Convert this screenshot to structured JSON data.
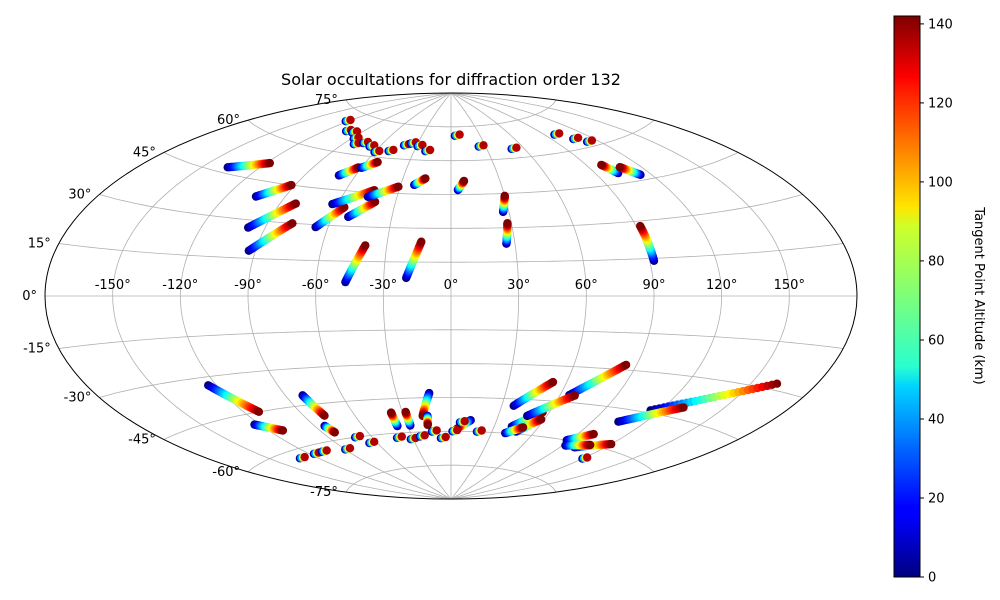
{
  "chart_data": {
    "type": "scatter",
    "projection": "Aitoff",
    "title": "Solar occultations for diffraction order 132",
    "grid": true,
    "lon_ticks": [
      {
        "value": -150,
        "label": "-150°"
      },
      {
        "value": -120,
        "label": "-120°"
      },
      {
        "value": -90,
        "label": "-90°"
      },
      {
        "value": -60,
        "label": "-60°"
      },
      {
        "value": -30,
        "label": "-30°"
      },
      {
        "value": 0,
        "label": "0°"
      },
      {
        "value": 30,
        "label": "30°"
      },
      {
        "value": 60,
        "label": "60°"
      },
      {
        "value": 90,
        "label": "90°"
      },
      {
        "value": 120,
        "label": "120°"
      },
      {
        "value": 150,
        "label": "150°"
      }
    ],
    "lat_ticks": [
      {
        "value": 75,
        "label": "75°"
      },
      {
        "value": 60,
        "label": "60°"
      },
      {
        "value": 45,
        "label": "45°"
      },
      {
        "value": 30,
        "label": "30°"
      },
      {
        "value": 15,
        "label": "15°"
      },
      {
        "value": 0,
        "label": "0°"
      },
      {
        "value": -15,
        "label": "-15°"
      },
      {
        "value": -30,
        "label": "-30°"
      },
      {
        "value": -45,
        "label": "-45°"
      },
      {
        "value": -60,
        "label": "-60°"
      },
      {
        "value": -75,
        "label": "-75°"
      }
    ],
    "colorbar": {
      "label": "Tangent Point Altitude (km)",
      "colormap": "jet",
      "range": [
        0,
        142
      ],
      "ticks": [
        {
          "value": 0,
          "label": "0"
        },
        {
          "value": 20,
          "label": "20"
        },
        {
          "value": 40,
          "label": "40"
        },
        {
          "value": 60,
          "label": "60"
        },
        {
          "value": 80,
          "label": "80"
        },
        {
          "value": 100,
          "label": "100"
        },
        {
          "value": 120,
          "label": "120"
        },
        {
          "value": 140,
          "label": "140"
        }
      ]
    },
    "tracks": [
      {
        "lon0": -137,
        "lat0": 47,
        "lon1": -118,
        "lat1": 51.5
      },
      {
        "lon0": -105,
        "lat0": 39,
        "lon1": -92,
        "lat1": 45
      },
      {
        "lon0": -98,
        "lat0": 27,
        "lon1": -82,
        "lat1": 38
      },
      {
        "lon0": -93,
        "lat0": 18,
        "lon1": -78,
        "lat1": 30
      },
      {
        "lon0": -66,
        "lat0": 29,
        "lon1": -56,
        "lat1": 38
      },
      {
        "lon0": -63,
        "lat0": 39,
        "lon1": -44,
        "lat1": 46
      },
      {
        "lon0": -52,
        "lat0": 34,
        "lon1": -41,
        "lat1": 41
      },
      {
        "lon0": -46,
        "lat0": 43,
        "lon1": -31,
        "lat1": 48
      },
      {
        "lon0": -47,
        "lat0": 6,
        "lon1": -40,
        "lat1": 22
      },
      {
        "lon0": -20,
        "lat0": 8,
        "lon1": -14,
        "lat1": 24
      },
      {
        "lon0": -22,
        "lat0": 49,
        "lon1": -16,
        "lat1": 52
      },
      {
        "lon0": 4,
        "lat0": 47,
        "lon1": 8,
        "lat1": 51
      },
      {
        "lon0": 26,
        "lat0": 23,
        "lon1": 28,
        "lat1": 32
      },
      {
        "lon0": 27,
        "lat0": 37,
        "lon1": 30,
        "lat1": 44
      },
      {
        "lon0": 92,
        "lat0": 14,
        "lon1": 92,
        "lat1": 28
      },
      {
        "lon0": 103,
        "lat0": 49,
        "lon1": 99,
        "lat1": 53
      },
      {
        "lon0": 114,
        "lat0": 47,
        "lon1": 108,
        "lat1": 51
      },
      {
        "lon0": -70,
        "lat0": 51,
        "lon1": -62,
        "lat1": 55
      },
      {
        "lon0": -60,
        "lat0": 55,
        "lon1": -52,
        "lat1": 58
      },
      {
        "lon0": -124,
        "lat0": -33,
        "lon1": -112,
        "lat1": -45
      },
      {
        "lon0": -123,
        "lat0": -49,
        "lon1": -112,
        "lat1": -53
      },
      {
        "lon0": -81,
        "lat0": -41,
        "lon1": -78,
        "lat1": -50
      },
      {
        "lon0": -84,
        "lat0": -54,
        "lon1": -82,
        "lat1": -57
      },
      {
        "lon0": -37,
        "lat0": -57,
        "lon1": -37,
        "lat1": -51
      },
      {
        "lon0": -28,
        "lat0": -57,
        "lon1": -28,
        "lat1": -51
      },
      {
        "lon0": -12,
        "lat0": -43,
        "lon1": -18,
        "lat1": -53
      },
      {
        "lon0": -15,
        "lat0": -53,
        "lon1": -16,
        "lat1": -57
      },
      {
        "lon0": 13,
        "lat0": -55,
        "lon1": 4,
        "lat1": -59
      },
      {
        "lon0": 37,
        "lat0": -48,
        "lon1": 53,
        "lat1": -37
      },
      {
        "lon0": 42,
        "lat0": -57,
        "lon1": 56,
        "lat1": -50
      },
      {
        "lon0": 65,
        "lat0": -42,
        "lon1": 85,
        "lat1": -28
      },
      {
        "lon0": 48,
        "lat0": -52,
        "lon1": 68,
        "lat1": -42
      },
      {
        "lon0": 47,
        "lat0": -59,
        "lon1": 58,
        "lat1": -53
      },
      {
        "lon0": 40,
        "lat0": -60,
        "lon1": 50,
        "lat1": -57
      },
      {
        "lon0": 115,
        "lat0": -44,
        "lon1": 162,
        "lat1": -28
      },
      {
        "lon0": 105,
        "lat0": -50,
        "lon1": 130,
        "lat1": -41
      },
      {
        "lon0": 88,
        "lat0": -60,
        "lon1": 100,
        "lat1": -56
      },
      {
        "lon0": 100,
        "lat0": -62,
        "lon1": 120,
        "lat1": -58
      },
      {
        "lon0": 92,
        "lat0": -62,
        "lon1": 108,
        "lat1": -60
      }
    ],
    "clusters": [
      {
        "lon": -122,
        "lat": 71
      },
      {
        "lon": -104,
        "lat": 68
      },
      {
        "lon": -97,
        "lat": 68
      },
      {
        "lon": -88,
        "lat": 66
      },
      {
        "lon": -82,
        "lat": 64
      },
      {
        "lon": -76,
        "lat": 65
      },
      {
        "lon": -68,
        "lat": 64
      },
      {
        "lon": -60,
        "lat": 62
      },
      {
        "lon": -50,
        "lat": 63
      },
      {
        "lon": -41,
        "lat": 66
      },
      {
        "lon": -36,
        "lat": 67
      },
      {
        "lon": -29,
        "lat": 66
      },
      {
        "lon": -21,
        "lat": 64
      },
      {
        "lon": 4,
        "lat": 71
      },
      {
        "lon": 24,
        "lat": 66
      },
      {
        "lon": 50,
        "lat": 64
      },
      {
        "lon": 98,
        "lat": 67
      },
      {
        "lon": 106,
        "lat": 64
      },
      {
        "lon": 112,
        "lat": 62
      },
      {
        "lon": -132,
        "lat": -63
      },
      {
        "lon": -117,
        "lat": -63
      },
      {
        "lon": -109,
        "lat": -63
      },
      {
        "lon": -90,
        "lat": -64
      },
      {
        "lon": -72,
        "lat": -60
      },
      {
        "lon": -66,
        "lat": -63
      },
      {
        "lon": -42,
        "lat": -62
      },
      {
        "lon": -32,
        "lat": -63
      },
      {
        "lon": -24,
        "lat": -62
      },
      {
        "lon": -14,
        "lat": -60
      },
      {
        "lon": -8,
        "lat": -63
      },
      {
        "lon": 1,
        "lat": -60
      },
      {
        "lon": 6,
        "lat": -56
      },
      {
        "lon": 19,
        "lat": -60
      },
      {
        "lon": 120,
        "lat": -65
      }
    ]
  }
}
